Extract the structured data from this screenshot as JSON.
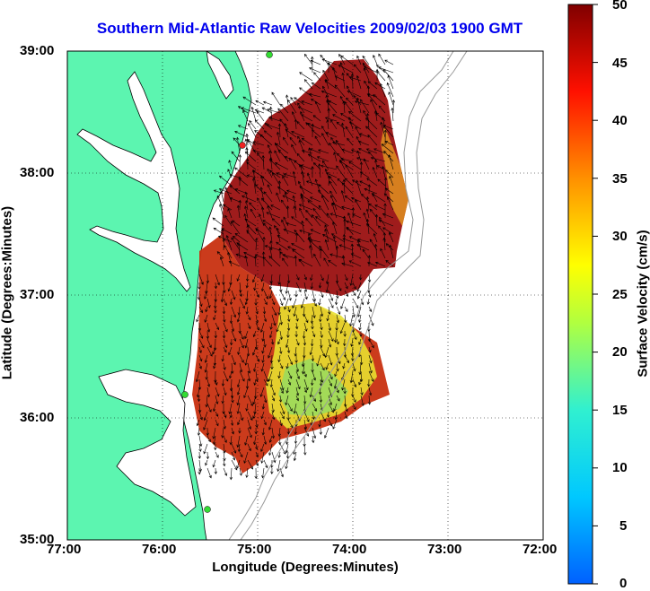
{
  "title": "Southern Mid-Atlantic Raw Velocities 2009/02/03 1900 GMT",
  "x_axis": {
    "label": "Longitude (Degrees:Minutes)",
    "ticks": [
      "77:00",
      "76:00",
      "75:00",
      "74:00",
      "73:00",
      "72:00"
    ]
  },
  "y_axis": {
    "label": "Latitude (Degrees:Minutes)",
    "ticks": [
      "39:00",
      "38:00",
      "37:00",
      "36:00",
      "35:00"
    ]
  },
  "colorbar": {
    "label": "Surface Velocity (cm/s)",
    "ticks": [
      "50",
      "45",
      "40",
      "35",
      "30",
      "25",
      "20",
      "15",
      "10",
      "5",
      "0"
    ],
    "min": 0,
    "max": 50,
    "colormap": "jet"
  },
  "chart_data": {
    "type": "heatmap",
    "title": "Southern Mid-Atlantic Raw Velocities 2009/02/03 1900 GMT",
    "xlabel": "Longitude (Degrees:Minutes)",
    "ylabel": "Latitude (Degrees:Minutes)",
    "xlim": [
      -77,
      -72
    ],
    "ylim": [
      35,
      39
    ],
    "grid": true,
    "colors": {
      "land": "#5cf5b0",
      "water": "#ffffff",
      "arrows": "#000000",
      "bathymetry": "#999999",
      "sites": "#33dd33"
    }
  }
}
